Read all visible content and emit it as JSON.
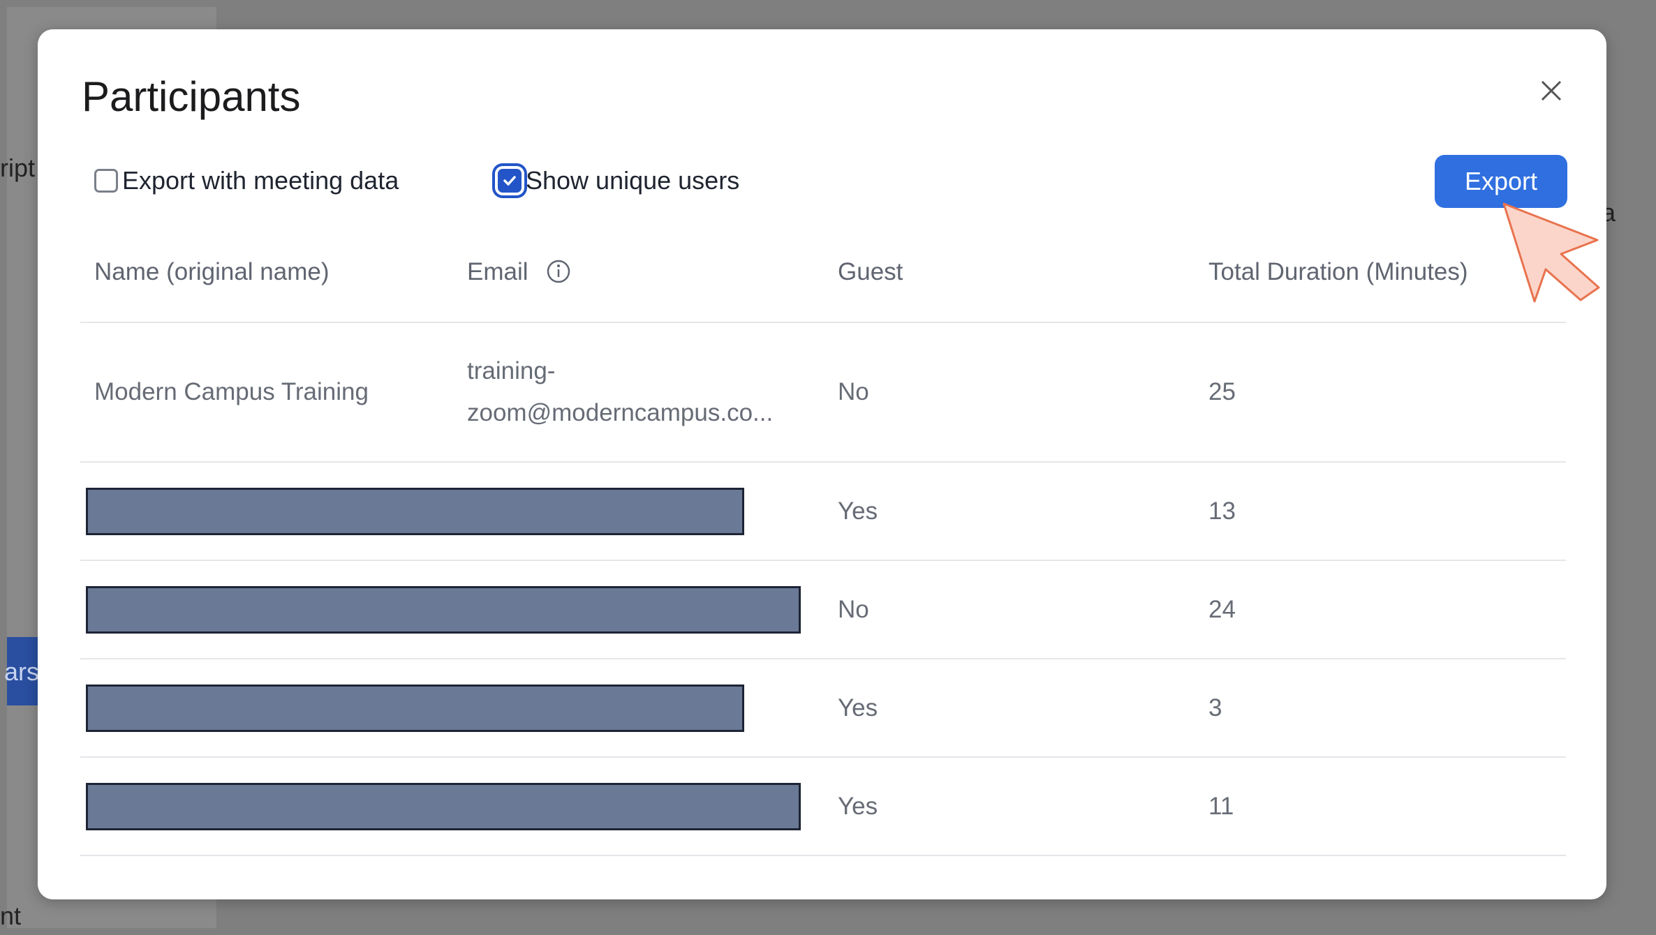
{
  "background": {
    "fragments": [
      "ript",
      "ars",
      "nt",
      "a"
    ]
  },
  "dialog": {
    "title": "Participants",
    "options": [
      {
        "label": "Export with meeting data",
        "checked": false
      },
      {
        "label": "Show unique users",
        "checked": true
      }
    ],
    "export_button": "Export",
    "table": {
      "headers": [
        "Name (original name)",
        "Email",
        "Guest",
        "Total Duration (Minutes)"
      ],
      "rows": [
        {
          "name": "Modern Campus Training",
          "email": [
            "training-",
            "zoom@moderncampus.co..."
          ],
          "guest": "No",
          "duration": 25,
          "redacted": false
        },
        {
          "guest": "Yes",
          "duration": 13,
          "redacted": true
        },
        {
          "guest": "No",
          "duration": 24,
          "redacted": true
        },
        {
          "guest": "Yes",
          "duration": 3,
          "redacted": true
        },
        {
          "guest": "Yes",
          "duration": 11,
          "redacted": true
        }
      ]
    }
  }
}
